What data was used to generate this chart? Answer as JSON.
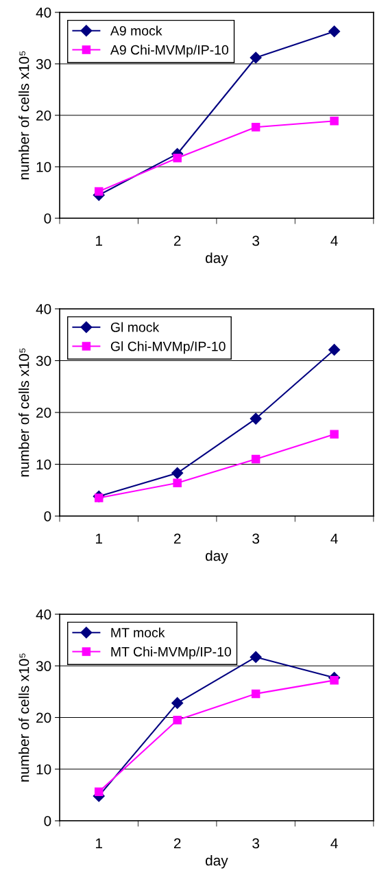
{
  "chart_data": [
    {
      "type": "line",
      "xlabel": "day",
      "ylabel": "number of cells x10⁵",
      "categories": [
        "1",
        "2",
        "3",
        "4"
      ],
      "ylim": [
        0,
        40
      ],
      "yticks": [
        0,
        10,
        20,
        30,
        40
      ],
      "grid": "y",
      "legend": "top left",
      "series": [
        {
          "name": "A9 mock",
          "color": "#000080",
          "marker": "diamond",
          "values": [
            4.5,
            12.5,
            31.2,
            36.3
          ]
        },
        {
          "name": "A9 Chi-MVMp/IP-10",
          "color": "#ff00ff",
          "marker": "square",
          "values": [
            5.2,
            11.7,
            17.7,
            18.9
          ]
        }
      ]
    },
    {
      "type": "line",
      "xlabel": "day",
      "ylabel": "number of cells x10⁵",
      "categories": [
        "1",
        "2",
        "3",
        "4"
      ],
      "ylim": [
        0,
        40
      ],
      "yticks": [
        0,
        10,
        20,
        30,
        40
      ],
      "grid": "y",
      "legend": "top left",
      "series": [
        {
          "name": "Gl mock",
          "color": "#000080",
          "marker": "diamond",
          "values": [
            3.8,
            8.3,
            18.8,
            32.1
          ]
        },
        {
          "name": "Gl Chi-MVMp/IP-10",
          "color": "#ff00ff",
          "marker": "square",
          "values": [
            3.5,
            6.4,
            11.0,
            15.8
          ]
        }
      ]
    },
    {
      "type": "line",
      "xlabel": "day",
      "ylabel": "number of cells x10⁵",
      "categories": [
        "1",
        "2",
        "3",
        "4"
      ],
      "ylim": [
        0,
        40
      ],
      "yticks": [
        0,
        10,
        20,
        30,
        40
      ],
      "grid": "y",
      "legend": "top left",
      "series": [
        {
          "name": "MT mock",
          "color": "#000080",
          "marker": "diamond",
          "values": [
            4.8,
            22.8,
            31.7,
            27.7
          ]
        },
        {
          "name": "MT Chi-MVMp/IP-10",
          "color": "#ff00ff",
          "marker": "square",
          "values": [
            5.6,
            19.5,
            24.6,
            27.2
          ]
        }
      ]
    }
  ]
}
